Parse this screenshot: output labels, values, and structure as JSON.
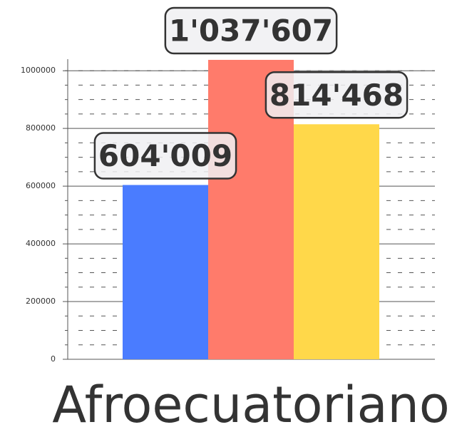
{
  "chart_data": {
    "type": "bar",
    "categories": [
      "Afroecuatoriano"
    ],
    "series": [
      {
        "color": "#4a7cff",
        "values": [
          604009
        ],
        "value_labels": [
          "604'009"
        ]
      },
      {
        "color": "#ff7b6b",
        "values": [
          1037607
        ],
        "value_labels": [
          "1'037'607"
        ]
      },
      {
        "color": "#ffd84a",
        "values": [
          814468
        ],
        "value_labels": [
          "814'468"
        ]
      }
    ],
    "ylim": [
      0,
      1040000
    ],
    "yticks": [
      0,
      200000,
      400000,
      600000,
      800000,
      1000000
    ],
    "minor_yticks": [
      50000,
      100000,
      150000,
      250000,
      300000,
      350000,
      450000,
      500000,
      550000,
      650000,
      700000,
      750000,
      850000,
      900000,
      950000,
      1000000
    ],
    "grid": true
  }
}
